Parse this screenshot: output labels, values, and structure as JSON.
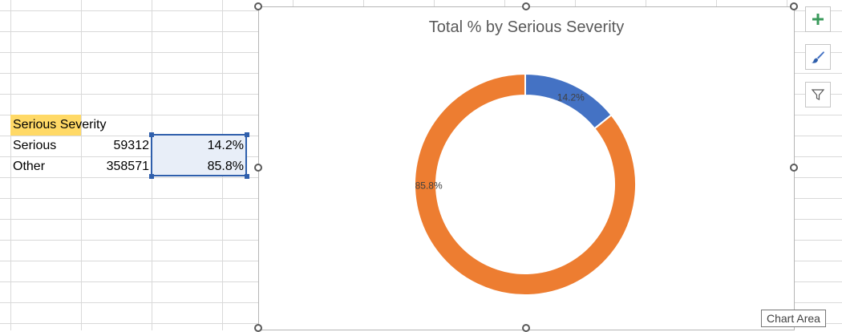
{
  "table": {
    "header": "Serious Severity",
    "rows": [
      {
        "label": "Serious",
        "count": "59312",
        "pct": "14.2%"
      },
      {
        "label": "Other",
        "count": "358571",
        "pct": "85.8%"
      }
    ]
  },
  "chart_data": {
    "type": "pie",
    "variant": "doughnut",
    "title": "Total % by Serious Severity",
    "slices": [
      {
        "label": "Serious",
        "value": 14.2,
        "data_label": "14.2%",
        "color": "#4472c4"
      },
      {
        "label": "Other",
        "value": 85.8,
        "data_label": "85.8%",
        "color": "#ed7d31"
      }
    ],
    "legend": "none"
  },
  "chart_buttons": {
    "add": "chart-elements",
    "style": "chart-styles",
    "filter": "chart-filters"
  },
  "tooltip": {
    "text": "Chart Area"
  },
  "colors": {
    "selection": "#2f5fac",
    "header_fill": "#ffd966",
    "serious": "#4472c4",
    "other": "#ed7d31"
  }
}
